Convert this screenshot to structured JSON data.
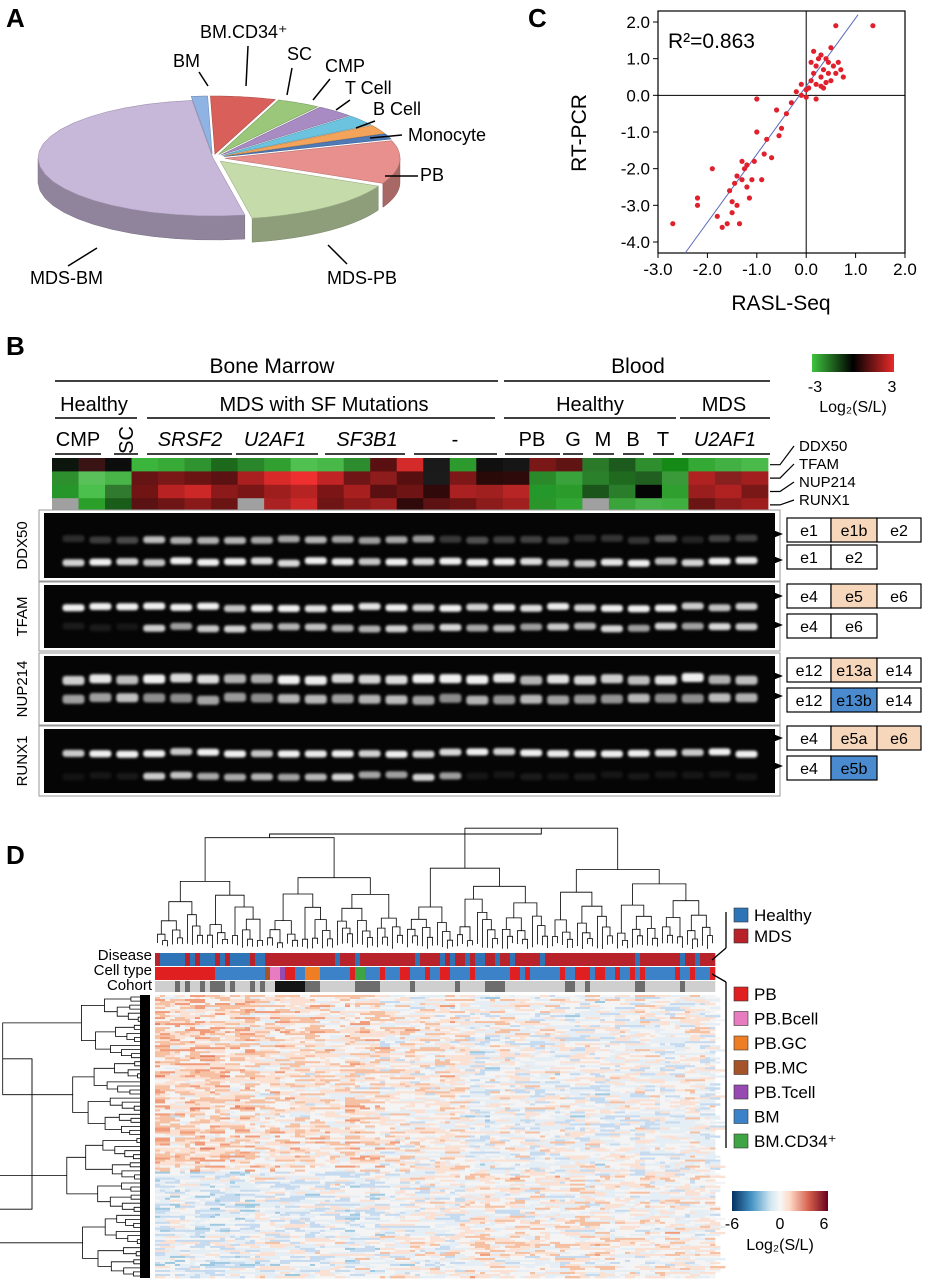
{
  "panels": {
    "a": "A",
    "b": "B",
    "c": "C",
    "d": "D"
  },
  "pie": {
    "slices": [
      {
        "label": "BM",
        "value": 1.5,
        "color": "#8fb4e3"
      },
      {
        "label": "BM.CD34⁺",
        "value": 6,
        "color": "#d9605a"
      },
      {
        "label": "SC",
        "value": 4,
        "color": "#9bc77a"
      },
      {
        "label": "CMP",
        "value": 3.5,
        "color": "#a98bc4"
      },
      {
        "label": "T Cell",
        "value": 3,
        "color": "#6cc3df"
      },
      {
        "label": "B Cell",
        "value": 2.5,
        "color": "#f3a45a"
      },
      {
        "label": "Monocyte",
        "value": 1.5,
        "color": "#4f7ab8"
      },
      {
        "label": "PB",
        "value": 12,
        "color": "#e8908d"
      },
      {
        "label": "MDS-PB",
        "value": 15,
        "color": "#c5dcaa"
      },
      {
        "label": "MDS-BM",
        "value": 51,
        "color": "#c7b7d9"
      }
    ]
  },
  "chart_data": [
    {
      "type": "pie",
      "categories": [
        "BM",
        "BM.CD34⁺",
        "SC",
        "CMP",
        "T Cell",
        "B Cell",
        "Monocyte",
        "PB",
        "MDS-PB",
        "MDS-BM"
      ],
      "values": [
        1.5,
        6,
        4,
        3.5,
        3,
        2.5,
        1.5,
        12,
        15,
        51
      ]
    },
    {
      "type": "scatter",
      "annotation": "R²=0.863",
      "xlabel": "RASL-Seq",
      "ylabel": "RT-PCR",
      "xlim": [
        -3.0,
        2.0
      ],
      "ylim": [
        -4.3,
        2.3
      ],
      "xticks": [
        "-3.0",
        "-2.0",
        "-1.0",
        "0.0",
        "1.0",
        "2.0"
      ],
      "yticks": [
        "2.0",
        "1.0",
        "0.0",
        "-1.0",
        "-2.0",
        "-3.0",
        "-4.0"
      ],
      "fit_line": [
        [
          -2.45,
          -4.3
        ],
        [
          1.05,
          2.2
        ]
      ],
      "points": [
        [
          -2.7,
          -3.5
        ],
        [
          -2.2,
          -2.8
        ],
        [
          -2.2,
          -3.0
        ],
        [
          -1.9,
          -2.0
        ],
        [
          -1.8,
          -3.3
        ],
        [
          -1.7,
          -3.6
        ],
        [
          -1.6,
          -3.5
        ],
        [
          -1.55,
          -2.6
        ],
        [
          -1.5,
          -2.9
        ],
        [
          -1.5,
          -3.2
        ],
        [
          -1.45,
          -2.4
        ],
        [
          -1.4,
          -2.2
        ],
        [
          -1.4,
          -3.0
        ],
        [
          -1.35,
          -3.5
        ],
        [
          -1.3,
          -2.3
        ],
        [
          -1.3,
          -1.8
        ],
        [
          -1.25,
          -2.0
        ],
        [
          -1.2,
          -1.9
        ],
        [
          -1.2,
          -2.5
        ],
        [
          -1.15,
          -2.8
        ],
        [
          -1.1,
          -2.3
        ],
        [
          -1.05,
          -1.8
        ],
        [
          -1.0,
          -0.1
        ],
        [
          -1.0,
          -1.0
        ],
        [
          -0.9,
          -2.3
        ],
        [
          -0.85,
          -1.6
        ],
        [
          -0.8,
          -1.2
        ],
        [
          -0.7,
          -1.7
        ],
        [
          -0.6,
          -0.4
        ],
        [
          -0.55,
          -1.1
        ],
        [
          -0.5,
          -0.9
        ],
        [
          -0.4,
          -0.5
        ],
        [
          -0.3,
          -0.2
        ],
        [
          -0.2,
          0.1
        ],
        [
          -0.1,
          0.0
        ],
        [
          0.0,
          -0.05
        ],
        [
          0.05,
          0.2
        ],
        [
          0.1,
          0.4
        ],
        [
          0.1,
          0.9
        ],
        [
          0.15,
          0.6
        ],
        [
          0.15,
          1.2
        ],
        [
          0.2,
          0.3
        ],
        [
          0.2,
          0.8
        ],
        [
          0.25,
          1.0
        ],
        [
          0.3,
          0.5
        ],
        [
          0.3,
          1.1
        ],
        [
          0.35,
          0.7
        ],
        [
          0.35,
          0.2
        ],
        [
          0.4,
          1.0
        ],
        [
          0.45,
          0.6
        ],
        [
          0.45,
          0.9
        ],
        [
          0.5,
          1.3
        ],
        [
          0.5,
          0.4
        ],
        [
          0.55,
          0.8
        ],
        [
          0.6,
          0.6
        ],
        [
          0.6,
          1.9
        ],
        [
          0.65,
          0.9
        ],
        [
          0.7,
          0.7
        ],
        [
          0.75,
          0.5
        ],
        [
          1.35,
          1.9
        ],
        [
          0.3,
          0.25
        ],
        [
          0.0,
          0.15
        ],
        [
          -0.1,
          0.3
        ],
        [
          0.2,
          -0.1
        ],
        [
          0.4,
          0.35
        ]
      ]
    }
  ],
  "panel_b": {
    "top_groups": {
      "bone_marrow": "Bone Marrow",
      "blood": "Blood"
    },
    "mid_groups": {
      "healthy_bm": "Healthy",
      "mds_sf": "MDS with SF Mutations",
      "healthy_blood": "Healthy",
      "mds_blood": "MDS"
    },
    "sample_groups": [
      "CMP",
      "SC",
      "SRSF2",
      "U2AF1",
      "SF3B1",
      "-",
      "PB",
      "G",
      "M",
      "B",
      "T",
      "U2AF1"
    ],
    "genes": [
      "DDX50",
      "TFAM",
      "NUP214",
      "RUNX1"
    ],
    "colorbar": {
      "min": "-3",
      "max": "3",
      "label": "Log₂(S/L)"
    },
    "heat_colors": [
      [
        "#0d160d",
        "#3a1414",
        "#0d0d0d",
        "#3bb53b",
        "#37aa37",
        "#2f942f",
        "#1d6a1d",
        "#2a862a",
        "#31a031",
        "#50c050",
        "#48b848",
        "#2d8c2d",
        "#5a1010",
        "#d42a2a",
        "#1a1a1a",
        "#2c9a2c",
        "#101010",
        "#161616",
        "#7a1818",
        "#601414",
        "#2a7a2a",
        "#1d5a1d",
        "#2f8f2f",
        "#168a16",
        "#35a935",
        "#42b042",
        "#4abb4a"
      ],
      [
        "#2e8f2e",
        "#5ac05a",
        "#49b549",
        "#661414",
        "#7a1818",
        "#6a1414",
        "#5c1212",
        "#aa2020",
        "#d92a2a",
        "#ee3030",
        "#c02424",
        "#701515",
        "#8d1c1c",
        "#580f0f",
        "#1b1b1b",
        "#7e1818",
        "#2a0909",
        "#2f0a0a",
        "#2a8a2a",
        "#3aa23a",
        "#2b802b",
        "#1f6a1f",
        "#205f20",
        "#3a9a3a",
        "#b02222",
        "#882020",
        "#a31f1f"
      ],
      [
        "#27962a",
        "#4cc04c",
        "#2f7a2f",
        "#701414",
        "#b82222",
        "#cc2828",
        "#8d1a1a",
        "#7a1616",
        "#9e1e1e",
        "#b52323",
        "#7c1616",
        "#a81f1f",
        "#5a1010",
        "#6e1414",
        "#300a0a",
        "#aa2121",
        "#a02020",
        "#b82525",
        "#24982a",
        "#2b9b2b",
        "#1b551b",
        "#2a7d2a",
        "#050505",
        "#2fa02f",
        "#9b1e1e",
        "#b02222",
        "#7a1818"
      ],
      [
        "#a0a0a0",
        "#2aa02a",
        "#1a5c1a",
        "#5a1212",
        "#701515",
        "#8a1a1a",
        "#6a1414",
        "#a0a0a0",
        "#aa2222",
        "#cc2828",
        "#701515",
        "#8a1a1a",
        "#9a1e1e",
        "#300a0a",
        "#5c1212",
        "#6c1414",
        "#8c1c1c",
        "#a0201f",
        "#2a962a",
        "#32a632",
        "#a0a0a0",
        "#3aa43a",
        "#48b048",
        "#3fb03f",
        "#6a1414",
        "#8c1c1c",
        "#9e1e1e"
      ]
    ],
    "exons": {
      "ddx50_long": [
        "e1",
        "e1b",
        "e2"
      ],
      "ddx50_short": [
        "e1",
        "e2"
      ],
      "tfam_long": [
        "e4",
        "e5",
        "e6"
      ],
      "tfam_short": [
        "e4",
        "e6"
      ],
      "nup_long": [
        "e12",
        "e13a",
        "e14"
      ],
      "nup_short": [
        "e12",
        "e13b",
        "e14"
      ],
      "runx_long": [
        "e4",
        "e5a",
        "e6"
      ],
      "runx_short": [
        "e4",
        "e5b"
      ]
    }
  },
  "panel_c": {
    "r2": "R²=0.863",
    "xlabel": "RASL-Seq",
    "ylabel": "RT-PCR"
  },
  "panel_d": {
    "row_labels": [
      "Disease",
      "Cell type",
      "Cohort"
    ],
    "disease_legend": [
      {
        "label": "Healthy",
        "color": "#2f74b7"
      },
      {
        "label": "MDS",
        "color": "#b8222a"
      }
    ],
    "celltype_legend": [
      {
        "label": "PB",
        "color": "#e02020"
      },
      {
        "label": "PB.Bcell",
        "color": "#e77cc0"
      },
      {
        "label": "PB.GC",
        "color": "#ee7d24"
      },
      {
        "label": "PB.MC",
        "color": "#a5532a"
      },
      {
        "label": "PB.Tcell",
        "color": "#9649b0"
      },
      {
        "label": "BM",
        "color": "#3b82c8"
      },
      {
        "label": "BM.CD34⁺",
        "color": "#3fa444"
      }
    ],
    "colorbar": {
      "min": "-6",
      "mid": "0",
      "max": "6",
      "label": "Log₂(S/L)"
    }
  }
}
